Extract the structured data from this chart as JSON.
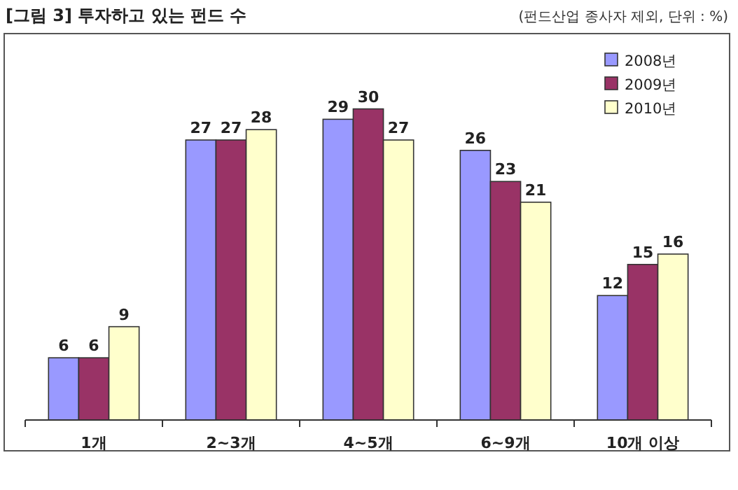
{
  "chart_data": {
    "type": "bar",
    "title": "[그림 3] 투자하고 있는 펀드 수",
    "subtitle": "(펀드산업 종사자 제외, 단위 : %)",
    "categories": [
      "1개",
      "2~3개",
      "4~5개",
      "6~9개",
      "10개 이상"
    ],
    "series": [
      {
        "name": "2008년",
        "color": "#9999ff",
        "values": [
          6,
          27,
          29,
          26,
          12
        ]
      },
      {
        "name": "2009년",
        "color": "#993366",
        "values": [
          6,
          27,
          30,
          23,
          15
        ]
      },
      {
        "name": "2010년",
        "color": "#ffffcc",
        "values": [
          9,
          28,
          27,
          21,
          16
        ]
      }
    ],
    "data_labels": true,
    "legend": "top right",
    "grid": false
  }
}
